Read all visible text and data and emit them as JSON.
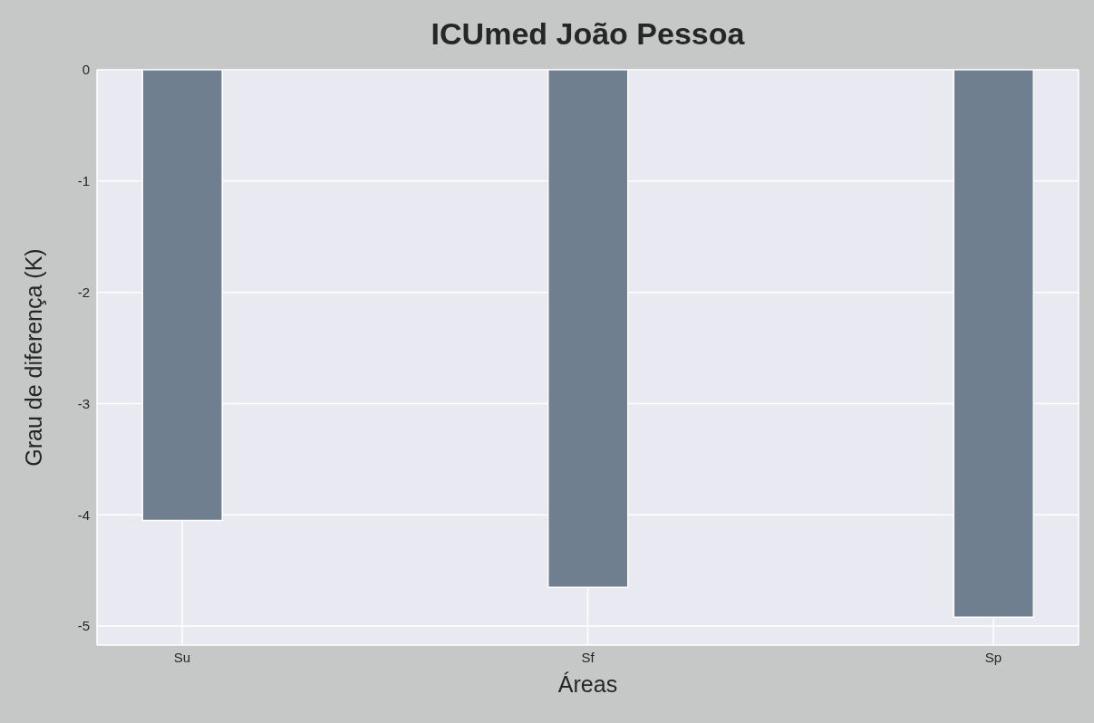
{
  "chart_data": {
    "type": "bar",
    "title": "ICUmed João Pessoa",
    "xlabel": "Áreas",
    "ylabel": "Grau de diferença (K)",
    "categories": [
      "Su",
      "Sf",
      "Sp"
    ],
    "values": [
      -4.05,
      -4.65,
      -4.92
    ],
    "color": "#6f7f8f",
    "ylim": [
      -5.17,
      0
    ],
    "yticks": [
      0,
      -1,
      -2,
      -3,
      -4,
      -5
    ],
    "grid": true
  }
}
